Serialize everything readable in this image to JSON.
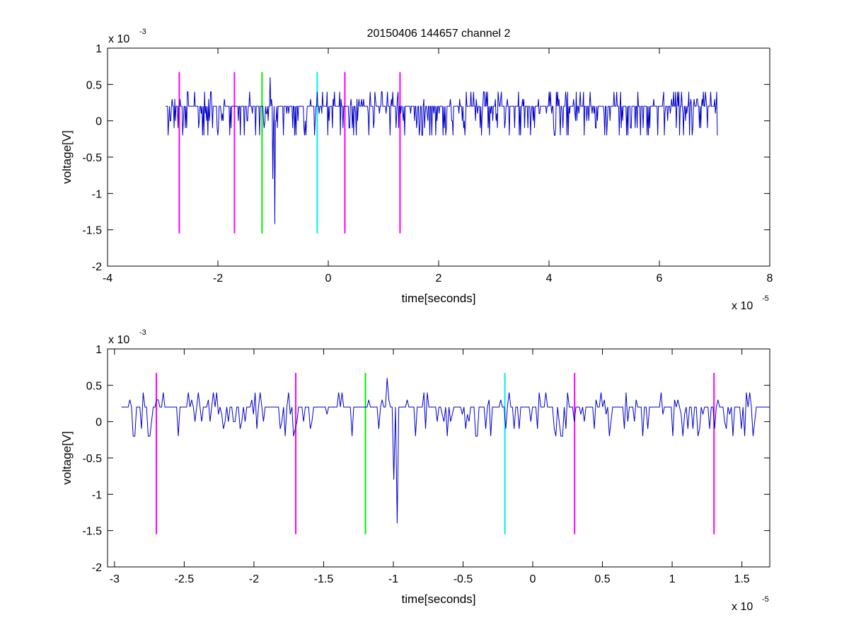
{
  "chart_data": [
    {
      "type": "line",
      "title": "20150406 144657 channel 2",
      "xlabel": "time[seconds]",
      "ylabel": "voltage[V]",
      "x_exponent_label": "x 10",
      "x_exponent": "-5",
      "y_exponent_label": "x 10",
      "y_exponent": "-3",
      "xlim": [
        -4,
        8
      ],
      "ylim": [
        -2,
        1
      ],
      "x_ticks": [
        -4,
        -2,
        0,
        2,
        4,
        6,
        8
      ],
      "x_tick_labels": [
        "-4",
        "-2",
        "0",
        "2",
        "4",
        "6",
        "8"
      ],
      "y_ticks": [
        -2,
        -1.5,
        -1,
        -0.5,
        0,
        0.5,
        1
      ],
      "y_tick_labels": [
        "-2",
        "-1.5",
        "-1",
        "-0.5",
        "0",
        "0.5",
        "1"
      ],
      "grid": false,
      "series": [
        {
          "color": "#0000cc",
          "x_range": [
            -2.95,
            7.05
          ],
          "baseline": 0.2,
          "spikes": [
            {
              "x": -1.05,
              "y": 0.6
            },
            {
              "x": -1.0,
              "y": -0.8
            },
            {
              "x": -0.97,
              "y": -1.42
            }
          ]
        }
      ],
      "markers": [
        {
          "x": -2.7,
          "y": [
            -1.55,
            0.67
          ],
          "color": "#ff00ff"
        },
        {
          "x": -1.7,
          "y": [
            -1.55,
            0.67
          ],
          "color": "#ff00ff"
        },
        {
          "x": -1.2,
          "y": [
            -1.55,
            0.67
          ],
          "color": "#00ee00"
        },
        {
          "x": -0.2,
          "y": [
            -1.55,
            0.67
          ],
          "color": "#00eeee"
        },
        {
          "x": 0.3,
          "y": [
            -1.55,
            0.67
          ],
          "color": "#ff00ff"
        },
        {
          "x": 1.3,
          "y": [
            -1.55,
            0.67
          ],
          "color": "#ff00ff"
        }
      ]
    },
    {
      "type": "line",
      "title": "",
      "xlabel": "time[seconds]",
      "ylabel": "voltage[V]",
      "x_exponent_label": "x 10",
      "x_exponent": "-5",
      "y_exponent_label": "x 10",
      "y_exponent": "-3",
      "xlim": [
        -3.05,
        1.7
      ],
      "ylim": [
        -2,
        1
      ],
      "x_ticks": [
        -3,
        -2.5,
        -2,
        -1.5,
        -1,
        -0.5,
        0,
        0.5,
        1,
        1.5
      ],
      "x_tick_labels": [
        "-3",
        "-2.5",
        "-2",
        "-1.5",
        "-1",
        "-0.5",
        "0",
        "0.5",
        "1",
        "1.5"
      ],
      "y_ticks": [
        -2,
        -1.5,
        -1,
        -0.5,
        0,
        0.5,
        1
      ],
      "y_tick_labels": [
        "-2",
        "-1.5",
        "-1",
        "-0.5",
        "0",
        "0.5",
        "1"
      ],
      "grid": false,
      "series": [
        {
          "color": "#0000cc",
          "x_range": [
            -2.95,
            1.7
          ],
          "baseline": 0.2,
          "spikes": [
            {
              "x": -1.05,
              "y": 0.6
            },
            {
              "x": -1.0,
              "y": -0.8
            },
            {
              "x": -0.97,
              "y": -1.4
            }
          ]
        }
      ],
      "markers": [
        {
          "x": -2.7,
          "y": [
            -1.55,
            0.67
          ],
          "color": "#ff00ff"
        },
        {
          "x": -1.7,
          "y": [
            -1.55,
            0.67
          ],
          "color": "#ff00ff"
        },
        {
          "x": -1.2,
          "y": [
            -1.55,
            0.67
          ],
          "color": "#00ee00"
        },
        {
          "x": -0.2,
          "y": [
            -1.55,
            0.67
          ],
          "color": "#00eeee"
        },
        {
          "x": 0.3,
          "y": [
            -1.55,
            0.67
          ],
          "color": "#ff00ff"
        },
        {
          "x": 1.3,
          "y": [
            -1.55,
            0.67
          ],
          "color": "#ff00ff"
        }
      ]
    }
  ]
}
